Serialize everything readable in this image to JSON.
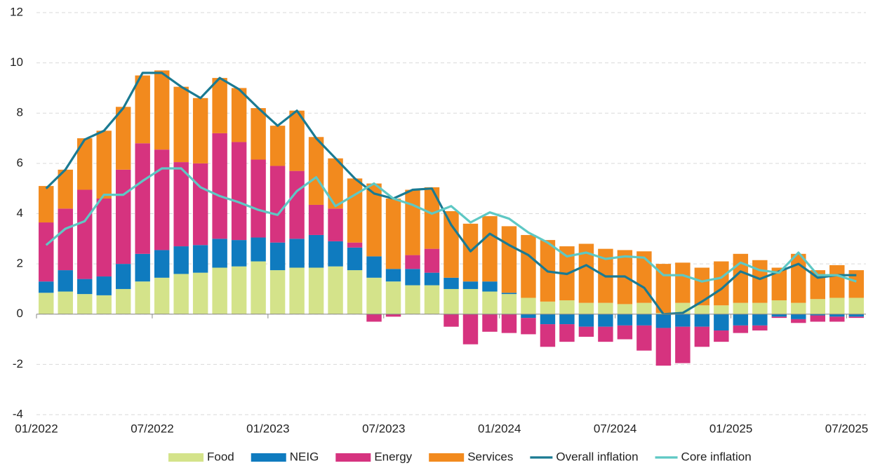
{
  "chart_data": {
    "type": "bar",
    "categories": [
      "01/2022",
      null,
      null,
      null,
      null,
      null,
      "07/2022",
      null,
      null,
      null,
      null,
      null,
      "01/2023",
      null,
      null,
      null,
      null,
      null,
      "07/2023",
      null,
      null,
      null,
      null,
      null,
      "01/2024",
      null,
      null,
      null,
      null,
      null,
      "07/2024",
      null,
      null,
      null,
      null,
      null,
      "01/2025",
      null,
      null,
      null,
      null,
      null,
      "07/2025"
    ],
    "ylim": [
      -4,
      12
    ],
    "yticks": [
      -4,
      -2,
      0,
      2,
      4,
      6,
      8,
      10,
      12
    ],
    "grid": true,
    "legend": "bottom",
    "series": [
      {
        "name": "Food",
        "type": "bar",
        "color": "#d4e38a",
        "values": [
          0.85,
          0.9,
          0.8,
          0.75,
          1.0,
          1.3,
          1.45,
          1.6,
          1.65,
          1.85,
          1.9,
          2.1,
          1.75,
          1.85,
          1.85,
          1.9,
          1.75,
          1.45,
          1.3,
          1.15,
          1.15,
          1.0,
          1.0,
          0.9,
          0.8,
          0.65,
          0.5,
          0.55,
          0.45,
          0.45,
          0.4,
          0.45,
          0.05,
          0.45,
          0.35,
          0.35,
          0.45,
          0.45,
          0.55,
          0.45,
          0.6,
          0.65,
          0.65
        ]
      },
      {
        "name": "NEIG",
        "type": "bar",
        "color": "#0f7bbf",
        "values": [
          0.45,
          0.85,
          0.6,
          0.75,
          1.0,
          1.1,
          1.1,
          1.1,
          1.1,
          1.15,
          1.05,
          0.95,
          1.1,
          1.15,
          1.3,
          1.0,
          0.9,
          0.85,
          0.5,
          0.65,
          0.5,
          0.45,
          0.3,
          0.4,
          0.05,
          -0.15,
          -0.4,
          -0.4,
          -0.5,
          -0.5,
          -0.45,
          -0.45,
          -0.55,
          -0.5,
          -0.5,
          -0.65,
          -0.45,
          -0.45,
          -0.1,
          -0.2,
          -0.05,
          -0.1,
          -0.1
        ]
      },
      {
        "name": "Energy",
        "type": "bar",
        "color": "#d6337f",
        "values": [
          2.35,
          2.45,
          3.55,
          3.1,
          3.75,
          4.4,
          4.0,
          3.35,
          3.25,
          4.2,
          3.9,
          3.1,
          3.05,
          2.7,
          1.2,
          1.3,
          0.2,
          -0.3,
          -0.1,
          0.55,
          0.95,
          -0.5,
          -1.2,
          -0.7,
          -0.75,
          -0.65,
          -0.9,
          -0.7,
          -0.4,
          -0.6,
          -0.55,
          -1.0,
          -1.5,
          -1.45,
          -0.8,
          -0.45,
          -0.3,
          -0.2,
          -0.05,
          -0.15,
          -0.25,
          -0.2,
          -0.05
        ]
      },
      {
        "name": "Services",
        "type": "bar",
        "color": "#f28a1e",
        "values": [
          1.45,
          1.55,
          2.05,
          2.7,
          2.5,
          2.7,
          3.15,
          3.0,
          2.6,
          2.2,
          2.15,
          2.05,
          1.6,
          2.4,
          2.7,
          2.0,
          2.55,
          2.9,
          2.8,
          2.6,
          2.45,
          2.65,
          2.3,
          2.6,
          2.65,
          2.5,
          2.45,
          2.15,
          2.35,
          2.15,
          2.15,
          2.05,
          1.95,
          1.6,
          1.5,
          1.75,
          1.95,
          1.7,
          1.3,
          1.95,
          1.15,
          1.3,
          1.1
        ]
      },
      {
        "name": "Overall inflation",
        "type": "line",
        "color": "#1a7a92",
        "values": [
          5.0,
          5.75,
          6.95,
          7.3,
          8.2,
          9.6,
          9.6,
          9.05,
          8.6,
          9.4,
          8.95,
          8.2,
          7.5,
          8.1,
          7.0,
          6.2,
          5.4,
          4.8,
          4.6,
          4.95,
          5.0,
          3.55,
          2.5,
          3.2,
          2.75,
          2.35,
          1.7,
          1.6,
          1.95,
          1.5,
          1.5,
          1.05,
          0.0,
          0.05,
          0.5,
          1.0,
          1.7,
          1.4,
          1.7,
          2.0,
          1.45,
          1.55,
          1.55
        ]
      },
      {
        "name": "Core inflation",
        "type": "line",
        "color": "#5ec8c4",
        "values": [
          2.75,
          3.4,
          3.7,
          4.75,
          4.75,
          5.3,
          5.8,
          5.8,
          5.05,
          4.7,
          4.45,
          4.15,
          3.95,
          4.9,
          5.45,
          4.3,
          4.75,
          5.2,
          4.6,
          4.35,
          4.0,
          4.3,
          3.65,
          4.05,
          3.8,
          3.25,
          2.85,
          2.3,
          2.45,
          2.2,
          2.3,
          2.25,
          1.55,
          1.55,
          1.3,
          1.45,
          2.05,
          1.75,
          1.65,
          2.45,
          1.55,
          1.55,
          1.3
        ]
      }
    ]
  }
}
